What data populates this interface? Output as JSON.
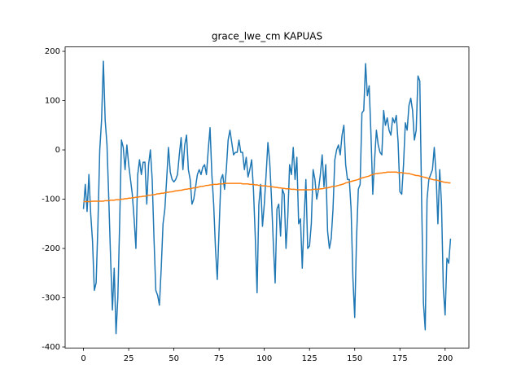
{
  "chart_data": {
    "type": "line",
    "title": "grace_lwe_cm KAPUAS",
    "x": [
      0,
      1,
      2,
      3,
      4,
      5,
      6,
      7,
      8,
      9,
      10,
      11,
      12,
      13,
      14,
      15,
      16,
      17,
      18,
      19,
      20,
      21,
      22,
      23,
      24,
      25,
      26,
      27,
      28,
      29,
      30,
      31,
      32,
      33,
      34,
      35,
      36,
      37,
      38,
      39,
      40,
      41,
      42,
      43,
      44,
      45,
      46,
      47,
      48,
      49,
      50,
      51,
      52,
      53,
      54,
      55,
      56,
      57,
      58,
      59,
      60,
      61,
      62,
      63,
      64,
      65,
      66,
      67,
      68,
      69,
      70,
      71,
      72,
      73,
      74,
      75,
      76,
      77,
      78,
      79,
      80,
      81,
      82,
      83,
      84,
      85,
      86,
      87,
      88,
      89,
      90,
      91,
      92,
      93,
      94,
      95,
      96,
      97,
      98,
      99,
      100,
      101,
      102,
      103,
      104,
      105,
      106,
      107,
      108,
      109,
      110,
      111,
      112,
      113,
      114,
      115,
      116,
      117,
      118,
      119,
      120,
      121,
      122,
      123,
      124,
      125,
      126,
      127,
      128,
      129,
      130,
      131,
      132,
      133,
      134,
      135,
      136,
      137,
      138,
      139,
      140,
      141,
      142,
      143,
      144,
      145,
      146,
      147,
      148,
      149,
      150,
      151,
      152,
      153,
      154,
      155,
      156,
      157,
      158,
      159,
      160,
      161,
      162,
      163,
      164,
      165,
      166,
      167,
      168,
      169,
      170,
      171,
      172,
      173,
      174,
      175,
      176,
      177,
      178,
      179,
      180,
      181,
      182,
      183,
      184,
      185,
      186,
      187,
      188,
      189,
      190,
      191,
      192,
      193,
      194,
      195,
      196,
      197,
      198,
      199,
      200,
      201,
      202,
      203
    ],
    "series": [
      {
        "color": "#1f77b4",
        "values": [
          -120,
          -70,
          -125,
          -50,
          -130,
          -185,
          -285,
          -270,
          -150,
          0,
          60,
          180,
          60,
          10,
          -100,
          -220,
          -325,
          -240,
          -373,
          -300,
          -150,
          20,
          5,
          -40,
          10,
          -30,
          -60,
          -90,
          -140,
          -200,
          -50,
          -20,
          -50,
          -25,
          -25,
          -110,
          -30,
          0,
          -60,
          -180,
          -285,
          -295,
          -315,
          -240,
          -150,
          -120,
          -60,
          5,
          -45,
          -60,
          -65,
          -60,
          -50,
          -10,
          25,
          -40,
          10,
          30,
          -40,
          -60,
          -110,
          -100,
          -75,
          -50,
          -40,
          -50,
          -35,
          -30,
          -50,
          0,
          45,
          -50,
          -110,
          -200,
          -263,
          -160,
          -60,
          -50,
          -80,
          -40,
          20,
          40,
          15,
          -10,
          -5,
          -5,
          20,
          -5,
          -5,
          -40,
          -15,
          -55,
          -40,
          -20,
          -80,
          -175,
          -290,
          -110,
          -70,
          -155,
          -110,
          -50,
          15,
          -25,
          -100,
          -190,
          -270,
          -120,
          -110,
          -175,
          -80,
          -90,
          -200,
          -135,
          -30,
          -50,
          5,
          -60,
          -15,
          -150,
          -140,
          -240,
          -140,
          -60,
          -200,
          -195,
          -150,
          -40,
          -60,
          -100,
          -80,
          -50,
          -10,
          -75,
          -30,
          -165,
          -200,
          -180,
          -120,
          -20,
          0,
          10,
          -10,
          30,
          50,
          -30,
          -60,
          -60,
          -120,
          -260,
          -340,
          -180,
          -80,
          -70,
          75,
          80,
          175,
          110,
          130,
          30,
          -90,
          -20,
          40,
          10,
          -5,
          -10,
          80,
          50,
          65,
          40,
          30,
          65,
          55,
          70,
          15,
          -85,
          -90,
          -30,
          55,
          40,
          90,
          105,
          80,
          20,
          40,
          150,
          140,
          -100,
          -310,
          -365,
          -100,
          -60,
          -50,
          -40,
          5,
          -50,
          -150,
          -40,
          -110,
          -280,
          -335,
          -220,
          -230,
          -180
        ]
      },
      {
        "color": "#ff7f0e",
        "values": [
          -105,
          -105,
          -105,
          -105,
          -105,
          -104,
          -104,
          -104,
          -104,
          -104,
          -104,
          -104,
          -103,
          -103,
          -103,
          -102,
          -102,
          -102,
          -101,
          -101,
          -101,
          -100,
          -100,
          -99,
          -99,
          -98,
          -98,
          -97,
          -97,
          -96,
          -96,
          -95,
          -95,
          -94,
          -94,
          -93,
          -92,
          -92,
          -91,
          -91,
          -90,
          -89,
          -89,
          -88,
          -88,
          -87,
          -86,
          -86,
          -85,
          -85,
          -84,
          -83,
          -83,
          -82,
          -82,
          -81,
          -80,
          -80,
          -79,
          -79,
          -78,
          -77,
          -77,
          -76,
          -75,
          -74,
          -74,
          -73,
          -72,
          -72,
          -71,
          -71,
          -70,
          -70,
          -70,
          -69,
          -69,
          -69,
          -68,
          -68,
          -68,
          -68,
          -68,
          -68,
          -68,
          -68,
          -68,
          -68,
          -69,
          -69,
          -69,
          -69,
          -70,
          -70,
          -70,
          -71,
          -71,
          -72,
          -72,
          -73,
          -73,
          -73,
          -74,
          -74,
          -75,
          -75,
          -76,
          -76,
          -77,
          -77,
          -78,
          -78,
          -79,
          -79,
          -79,
          -80,
          -80,
          -80,
          -81,
          -81,
          -81,
          -81,
          -81,
          -81,
          -81,
          -81,
          -81,
          -80,
          -80,
          -80,
          -80,
          -79,
          -79,
          -78,
          -77,
          -77,
          -76,
          -75,
          -74,
          -74,
          -73,
          -72,
          -71,
          -70,
          -69,
          -67,
          -66,
          -65,
          -64,
          -63,
          -62,
          -61,
          -60,
          -58,
          -57,
          -56,
          -55,
          -54,
          -53,
          -51,
          -50,
          -49,
          -48,
          -48,
          -47,
          -47,
          -46,
          -46,
          -45,
          -45,
          -45,
          -45,
          -45,
          -45,
          -46,
          -46,
          -46,
          -47,
          -47,
          -48,
          -48,
          -49,
          -50,
          -51,
          -52,
          -52,
          -53,
          -54,
          -55,
          -56,
          -57,
          -58,
          -59,
          -60,
          -61,
          -61,
          -62,
          -63,
          -64,
          -65,
          -66,
          -66,
          -67,
          -67
        ]
      }
    ],
    "xlim": [
      -10.15,
      213.15
    ],
    "xticks": [
      0,
      25,
      50,
      75,
      100,
      125,
      150,
      175,
      200
    ],
    "ylim": [
      -402,
      209
    ],
    "yticks": [
      -400,
      -300,
      -200,
      -100,
      0,
      100,
      200
    ]
  }
}
